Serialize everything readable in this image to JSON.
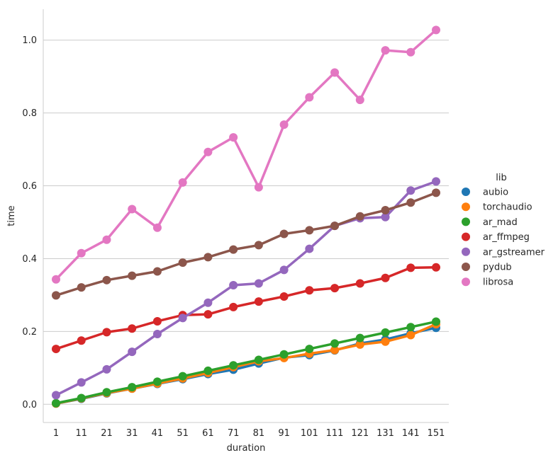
{
  "chart_data": {
    "type": "line",
    "title": "",
    "xlabel": "duration",
    "ylabel": "time",
    "categories": [
      "1",
      "11",
      "21",
      "31",
      "41",
      "51",
      "61",
      "71",
      "81",
      "91",
      "101",
      "111",
      "121",
      "131",
      "141",
      "151"
    ],
    "ylim": [
      -0.05,
      1.085
    ],
    "yticks": [
      "0.0",
      "0.2",
      "0.4",
      "0.6",
      "0.8",
      "1.0"
    ],
    "grid": "horizontal",
    "legend": {
      "title": "lib",
      "placement": "right"
    },
    "series": [
      {
        "name": "aubio",
        "color": "#1f77b4",
        "values": [
          0.002,
          0.015,
          0.03,
          0.043,
          0.056,
          0.069,
          0.083,
          0.095,
          0.112,
          0.128,
          0.135,
          0.148,
          0.167,
          0.178,
          0.195,
          0.21
        ]
      },
      {
        "name": "torchaudio",
        "color": "#ff7f0e",
        "values": [
          0.002,
          0.016,
          0.031,
          0.043,
          0.057,
          0.071,
          0.086,
          0.102,
          0.118,
          0.127,
          0.139,
          0.149,
          0.164,
          0.172,
          0.19,
          0.22
        ]
      },
      {
        "name": "ar_mad",
        "color": "#2ca02c",
        "values": [
          0.003,
          0.017,
          0.033,
          0.047,
          0.062,
          0.077,
          0.092,
          0.107,
          0.122,
          0.137,
          0.152,
          0.167,
          0.182,
          0.197,
          0.212,
          0.227
        ]
      },
      {
        "name": "ar_ffmpeg",
        "color": "#d62728",
        "values": [
          0.152,
          0.175,
          0.198,
          0.208,
          0.228,
          0.245,
          0.247,
          0.267,
          0.282,
          0.296,
          0.313,
          0.319,
          0.332,
          0.347,
          0.375,
          0.376
        ]
      },
      {
        "name": "ar_gstreamer",
        "color": "#9467bd",
        "values": [
          0.025,
          0.06,
          0.096,
          0.144,
          0.193,
          0.237,
          0.279,
          0.327,
          0.332,
          0.369,
          0.427,
          0.49,
          0.511,
          0.514,
          0.587,
          0.612
        ]
      },
      {
        "name": "pydub",
        "color": "#8c564b",
        "values": [
          0.299,
          0.321,
          0.341,
          0.353,
          0.365,
          0.389,
          0.404,
          0.425,
          0.437,
          0.468,
          0.478,
          0.49,
          0.516,
          0.533,
          0.554,
          0.581
        ]
      },
      {
        "name": "librosa",
        "color": "#e377c2",
        "values": [
          0.343,
          0.415,
          0.452,
          0.536,
          0.485,
          0.609,
          0.693,
          0.733,
          0.596,
          0.768,
          0.843,
          0.911,
          0.836,
          0.972,
          0.967,
          1.028
        ]
      }
    ]
  }
}
